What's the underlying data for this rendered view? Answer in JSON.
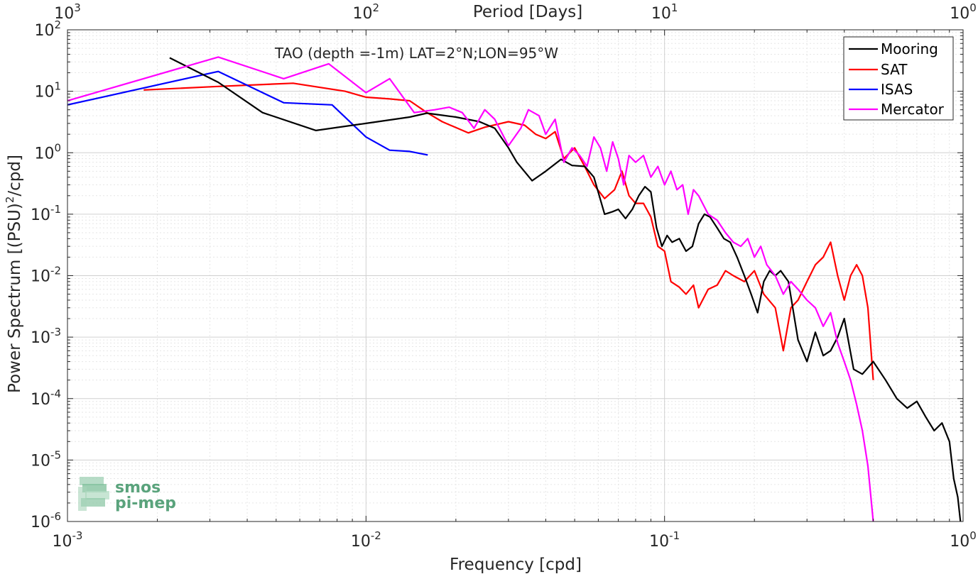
{
  "chart_data": {
    "type": "line",
    "title": "TAO (depth =-1m) LAT=2°N;LON=95°W",
    "xlabel": "Frequency [cpd]",
    "ylabel_main": "Power Spectrum [(PSU)",
    "ylabel_sup": "2",
    "ylabel_tail": "/cpd]",
    "top_xlabel": "Period [Days]",
    "xscale": "log",
    "yscale": "log",
    "xlim": [
      0.001,
      1
    ],
    "ylim": [
      1e-06,
      100
    ],
    "grid": true,
    "legend_position": "top-right",
    "x_ticks": [
      {
        "value": 0.001,
        "base": "10",
        "exp": "-3"
      },
      {
        "value": 0.01,
        "base": "10",
        "exp": "-2"
      },
      {
        "value": 0.1,
        "base": "10",
        "exp": "-1"
      },
      {
        "value": 1,
        "base": "10",
        "exp": "0"
      }
    ],
    "top_ticks": [
      {
        "value": 0.001,
        "base": "10",
        "exp": "3"
      },
      {
        "value": 0.01,
        "base": "10",
        "exp": "2"
      },
      {
        "value": 0.1,
        "base": "10",
        "exp": "1"
      },
      {
        "value": 1,
        "base": "10",
        "exp": "0"
      }
    ],
    "y_ticks": [
      {
        "value": 100,
        "base": "10",
        "exp": "2"
      },
      {
        "value": 10,
        "base": "10",
        "exp": "1"
      },
      {
        "value": 1,
        "base": "10",
        "exp": "0"
      },
      {
        "value": 0.1,
        "base": "10",
        "exp": "-1"
      },
      {
        "value": 0.01,
        "base": "10",
        "exp": "-2"
      },
      {
        "value": 0.001,
        "base": "10",
        "exp": "-3"
      },
      {
        "value": 0.0001,
        "base": "10",
        "exp": "-4"
      },
      {
        "value": 1e-05,
        "base": "10",
        "exp": "-5"
      },
      {
        "value": 1e-06,
        "base": "10",
        "exp": "-6"
      }
    ],
    "series": [
      {
        "name": "Mooring",
        "color": "#000000",
        "x": [
          0.0022,
          0.0032,
          0.0045,
          0.0068,
          0.01,
          0.014,
          0.016,
          0.02,
          0.024,
          0.027,
          0.03,
          0.032,
          0.036,
          0.04,
          0.045,
          0.049,
          0.054,
          0.058,
          0.063,
          0.067,
          0.07,
          0.074,
          0.078,
          0.082,
          0.086,
          0.09,
          0.094,
          0.098,
          0.102,
          0.106,
          0.112,
          0.118,
          0.124,
          0.13,
          0.136,
          0.142,
          0.15,
          0.158,
          0.166,
          0.175,
          0.185,
          0.195,
          0.205,
          0.215,
          0.225,
          0.235,
          0.245,
          0.26,
          0.28,
          0.3,
          0.32,
          0.34,
          0.36,
          0.38,
          0.4,
          0.43,
          0.46,
          0.5,
          0.55,
          0.6,
          0.65,
          0.7,
          0.75,
          0.8,
          0.85,
          0.9,
          0.93,
          0.96,
          0.98
        ],
        "y": [
          35,
          14,
          4.5,
          2.3,
          3.0,
          3.8,
          4.4,
          3.8,
          3.2,
          2.5,
          1.2,
          0.7,
          0.35,
          0.5,
          0.78,
          0.62,
          0.6,
          0.4,
          0.1,
          0.11,
          0.12,
          0.085,
          0.12,
          0.2,
          0.28,
          0.23,
          0.06,
          0.03,
          0.045,
          0.035,
          0.04,
          0.025,
          0.03,
          0.07,
          0.1,
          0.09,
          0.06,
          0.04,
          0.035,
          0.02,
          0.01,
          0.005,
          0.0025,
          0.008,
          0.012,
          0.01,
          0.012,
          0.008,
          0.0009,
          0.0004,
          0.0012,
          0.0005,
          0.0006,
          0.001,
          0.002,
          0.0003,
          0.00025,
          0.0004,
          0.0002,
          0.0001,
          7e-05,
          9e-05,
          5e-05,
          3e-05,
          4e-05,
          2e-05,
          5e-06,
          2.5e-06,
          1e-06
        ]
      },
      {
        "name": "SAT",
        "color": "#ff0000",
        "x": [
          0.0018,
          0.0032,
          0.0057,
          0.0085,
          0.01,
          0.012,
          0.014,
          0.016,
          0.018,
          0.022,
          0.025,
          0.03,
          0.034,
          0.037,
          0.04,
          0.043,
          0.046,
          0.05,
          0.054,
          0.058,
          0.063,
          0.068,
          0.072,
          0.076,
          0.08,
          0.085,
          0.09,
          0.095,
          0.1,
          0.105,
          0.112,
          0.118,
          0.125,
          0.13,
          0.14,
          0.15,
          0.16,
          0.17,
          0.185,
          0.2,
          0.215,
          0.235,
          0.25,
          0.265,
          0.28,
          0.3,
          0.32,
          0.34,
          0.36,
          0.38,
          0.4,
          0.42,
          0.44,
          0.46,
          0.48,
          0.5
        ],
        "y": [
          10.5,
          12,
          13.5,
          10,
          8,
          7.5,
          7,
          4.5,
          3.2,
          2.1,
          2.6,
          3.2,
          2.8,
          2,
          1.7,
          2.2,
          0.8,
          1.2,
          0.6,
          0.3,
          0.18,
          0.25,
          0.5,
          0.2,
          0.15,
          0.15,
          0.09,
          0.03,
          0.025,
          0.008,
          0.0065,
          0.005,
          0.007,
          0.003,
          0.006,
          0.007,
          0.012,
          0.01,
          0.008,
          0.012,
          0.005,
          0.003,
          0.0006,
          0.003,
          0.004,
          0.008,
          0.015,
          0.02,
          0.035,
          0.01,
          0.004,
          0.01,
          0.015,
          0.01,
          0.003,
          0.0002
        ]
      },
      {
        "name": "ISAS",
        "color": "#0000ff",
        "x": [
          0.001,
          0.0032,
          0.0053,
          0.0077,
          0.01,
          0.012,
          0.014,
          0.0161
        ],
        "y": [
          6,
          21,
          6.5,
          6,
          1.8,
          1.1,
          1.05,
          0.92
        ]
      },
      {
        "name": "Mercator",
        "color": "#ff00ff",
        "x": [
          0.001,
          0.0032,
          0.0053,
          0.0075,
          0.01,
          0.012,
          0.0145,
          0.017,
          0.019,
          0.021,
          0.023,
          0.025,
          0.027,
          0.03,
          0.033,
          0.035,
          0.038,
          0.04,
          0.043,
          0.046,
          0.049,
          0.052,
          0.055,
          0.058,
          0.061,
          0.064,
          0.067,
          0.07,
          0.073,
          0.076,
          0.08,
          0.085,
          0.09,
          0.095,
          0.1,
          0.105,
          0.11,
          0.115,
          0.12,
          0.125,
          0.13,
          0.14,
          0.15,
          0.16,
          0.17,
          0.18,
          0.19,
          0.2,
          0.21,
          0.22,
          0.235,
          0.25,
          0.265,
          0.28,
          0.3,
          0.32,
          0.34,
          0.36,
          0.38,
          0.4,
          0.42,
          0.44,
          0.46,
          0.48,
          0.5
        ],
        "y": [
          7,
          36,
          16,
          28,
          9.5,
          16,
          4.5,
          5,
          5.5,
          4.5,
          2.5,
          5,
          3.5,
          1.3,
          2.5,
          5,
          4,
          2,
          3.5,
          0.7,
          1.2,
          0.9,
          0.6,
          1.8,
          1.2,
          0.5,
          1.5,
          0.8,
          0.3,
          0.9,
          0.7,
          0.9,
          0.4,
          0.6,
          0.3,
          0.5,
          0.25,
          0.3,
          0.1,
          0.25,
          0.2,
          0.1,
          0.08,
          0.05,
          0.035,
          0.03,
          0.04,
          0.02,
          0.03,
          0.015,
          0.01,
          0.005,
          0.008,
          0.006,
          0.004,
          0.003,
          0.0015,
          0.0025,
          0.0008,
          0.0004,
          0.0002,
          8e-05,
          3e-05,
          8e-06,
          1e-06
        ]
      }
    ]
  },
  "watermark": {
    "line1": "smos",
    "line2": "pi-mep",
    "color": "#5aa37c"
  }
}
